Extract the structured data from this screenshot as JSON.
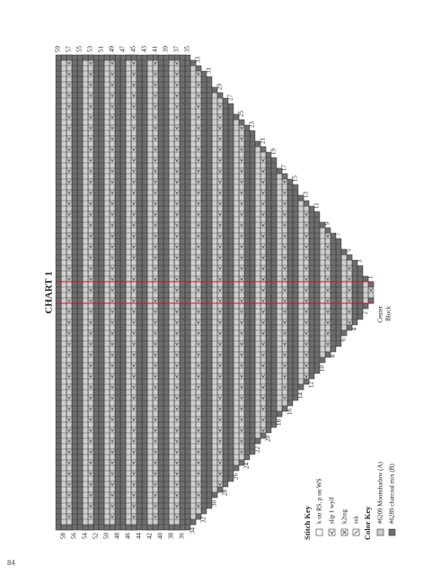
{
  "header": {
    "title": "CHART 1"
  },
  "odd_rows": [
    59,
    57,
    55,
    53,
    51,
    49,
    47,
    45,
    43,
    41,
    39,
    37,
    35,
    33,
    31,
    29,
    27,
    25,
    23,
    21,
    19,
    17,
    15,
    13,
    11,
    9,
    7,
    5,
    3,
    1
  ],
  "even_rows": [
    58,
    56,
    54,
    52,
    50,
    48,
    46,
    44,
    42,
    40,
    38,
    36,
    34,
    32,
    30,
    28,
    26,
    24,
    22,
    20,
    18,
    16,
    14,
    12,
    10,
    8,
    6,
    4,
    2
  ],
  "center_label": [
    "Center",
    "Block"
  ],
  "stitch_key": {
    "title": "Stitch Key",
    "items": [
      "k on RS, p on WS",
      "slip 1 wyif",
      "k2tog",
      "ssk"
    ]
  },
  "color_key": {
    "title": "Color Key",
    "items": [
      "#6209 Moonshadow (A)",
      "#6289 charcoal mix (B)"
    ]
  },
  "page_number": "84"
}
